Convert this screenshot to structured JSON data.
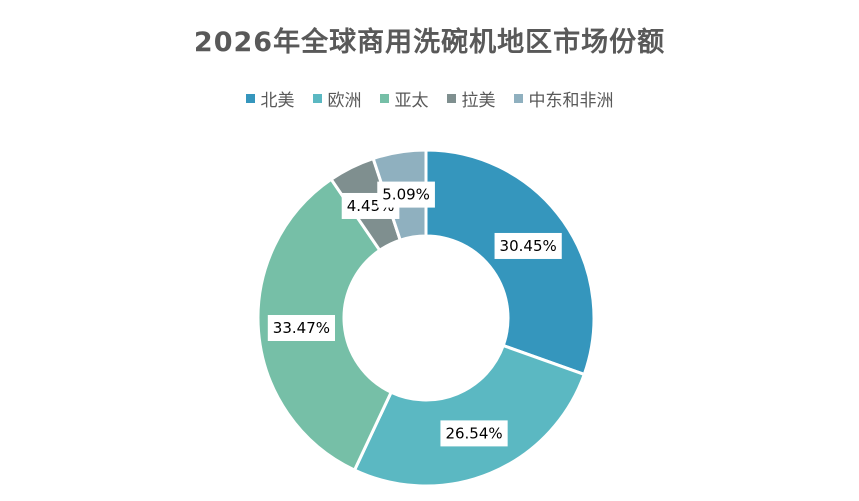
{
  "chart_data": {
    "type": "pie",
    "variant": "donut",
    "title": "2026年全球商用洗碗机地区市场份额",
    "categories": [
      "北美",
      "欧洲",
      "亚太",
      "拉美",
      "中东和非洲"
    ],
    "values": [
      30.45,
      26.54,
      33.47,
      4.45,
      5.09
    ],
    "value_labels": [
      "30.45%",
      "26.54%",
      "33.47%",
      "4.45%",
      "5.09%"
    ],
    "colors": [
      "#3596bd",
      "#5bb8c2",
      "#76bfa7",
      "#7f8f8f",
      "#8fb0bf"
    ],
    "legend": "top",
    "start_angle": "12 o'clock, clockwise"
  }
}
